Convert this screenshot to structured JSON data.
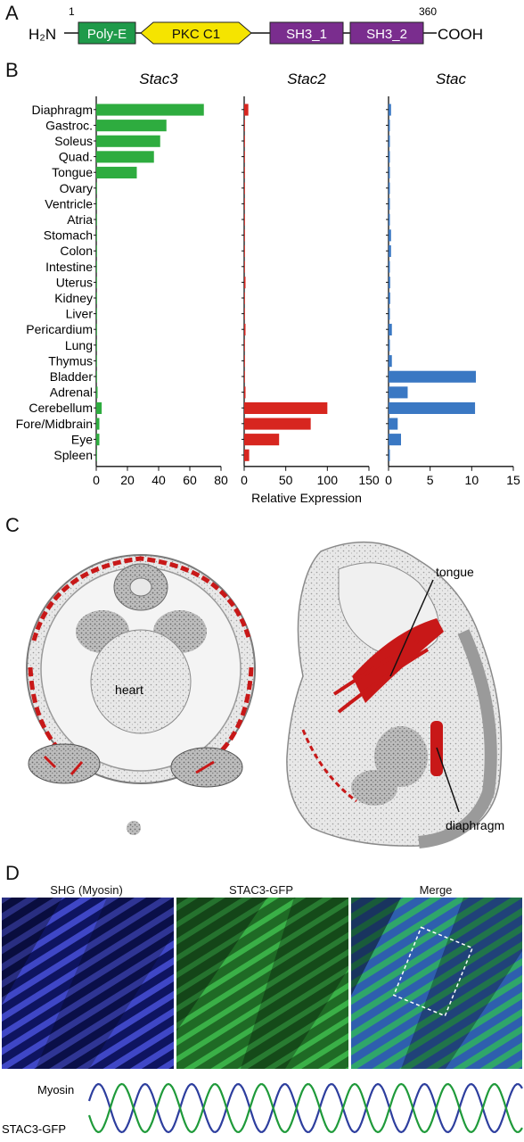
{
  "panels": {
    "A": "A",
    "B": "B",
    "C": "C",
    "D": "D"
  },
  "domain_diagram": {
    "n_terminus": "H₂N",
    "c_terminus": "COOH",
    "start_residue": "1",
    "end_residue": "360",
    "domains": [
      {
        "name": "Poly-E",
        "color": "#1f9a4a",
        "text_color": "#ffffff",
        "shape": "rect"
      },
      {
        "name": "PKC C1",
        "color": "#f5e400",
        "text_color": "#111111",
        "shape": "hex"
      },
      {
        "name": "SH3_1",
        "color": "#7a2d8e",
        "text_color": "#ffffff",
        "shape": "rect"
      },
      {
        "name": "SH3_2",
        "color": "#7a2d8e",
        "text_color": "#ffffff",
        "shape": "rect"
      }
    ]
  },
  "chart_data": [
    {
      "type": "bar",
      "orientation": "horizontal",
      "title": "Stac3",
      "color": "#2eac3f",
      "categories": [
        "Diaphragm",
        "Gastroc.",
        "Soleus",
        "Quad.",
        "Tongue",
        "Ovary",
        "Ventricle",
        "Atria",
        "Stomach",
        "Colon",
        "Intestine",
        "Uterus",
        "Kidney",
        "Liver",
        "Pericardium",
        "Lung",
        "Thymus",
        "Bladder",
        "Adrenal",
        "Cerebellum",
        "Fore/Midbrain",
        "Eye",
        "Spleen"
      ],
      "values": [
        69,
        45,
        41,
        37,
        26,
        0,
        0,
        0,
        0,
        0,
        0,
        0,
        0,
        0,
        0,
        0,
        0,
        0,
        0.5,
        3.5,
        2,
        2,
        0
      ],
      "xlim": [
        0,
        80
      ],
      "ticks": [
        "0",
        "20",
        "40",
        "60",
        "80"
      ]
    },
    {
      "type": "bar",
      "orientation": "horizontal",
      "title": "Stac2",
      "color": "#d7261f",
      "categories": [
        "Diaphragm",
        "Gastroc.",
        "Soleus",
        "Quad.",
        "Tongue",
        "Ovary",
        "Ventricle",
        "Atria",
        "Stomach",
        "Colon",
        "Intestine",
        "Uterus",
        "Kidney",
        "Liver",
        "Pericardium",
        "Lung",
        "Thymus",
        "Bladder",
        "Adrenal",
        "Cerebellum",
        "Fore/Midbrain",
        "Eye",
        "Spleen"
      ],
      "values": [
        5,
        0,
        0,
        0,
        0,
        0,
        0,
        0,
        0,
        0,
        0,
        1,
        0,
        0,
        1,
        0,
        0,
        0,
        1,
        100,
        80,
        42,
        6
      ],
      "xlim": [
        0,
        150
      ],
      "ticks": [
        "0",
        "50",
        "100",
        "150"
      ],
      "xlabel": "Relative Expression"
    },
    {
      "type": "bar",
      "orientation": "horizontal",
      "title": "Stac",
      "color": "#3a78c3",
      "categories": [
        "Diaphragm",
        "Gastroc.",
        "Soleus",
        "Quad.",
        "Tongue",
        "Ovary",
        "Ventricle",
        "Atria",
        "Stomach",
        "Colon",
        "Intestine",
        "Uterus",
        "Kidney",
        "Liver",
        "Pericardium",
        "Lung",
        "Thymus",
        "Bladder",
        "Adrenal",
        "Cerebellum",
        "Fore/Midbrain",
        "Eye",
        "Spleen"
      ],
      "values": [
        0.3,
        0.1,
        0.1,
        0.1,
        0.1,
        0.1,
        0.1,
        0.1,
        0.3,
        0.3,
        0.1,
        0.2,
        0.2,
        0.1,
        0.4,
        0.1,
        0.4,
        10.5,
        2.3,
        10.4,
        1.1,
        1.5,
        0.1
      ],
      "xlim": [
        0,
        15
      ],
      "ticks": [
        "0",
        "5",
        "10",
        "15"
      ]
    }
  ],
  "section_c": {
    "labels": [
      "heart",
      "tongue",
      "diaphragm"
    ]
  },
  "section_d": {
    "titles": [
      "SHG (Myosin)",
      "STAC3-GFP",
      "Merge"
    ],
    "profile_labels": [
      "Myosin",
      "STAC3-GFP"
    ],
    "colors": {
      "myosin": "#2d3e9e",
      "stac3": "#1f9a3a"
    }
  }
}
